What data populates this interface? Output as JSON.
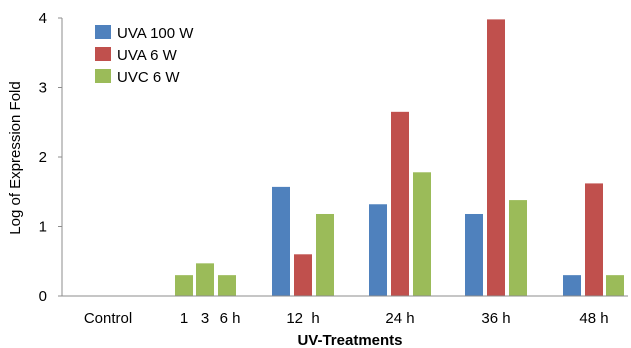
{
  "chart_data": {
    "type": "bar",
    "xlabel": "UV-Treatments",
    "ylabel": "Log of Expression Fold",
    "ylim": [
      0,
      4
    ],
    "yticks": [
      "0",
      "1",
      "2",
      "3",
      "4"
    ],
    "grid": false,
    "legend_position": "top-left",
    "x_tick_labels": [
      "Control",
      "1",
      "3",
      "6 h",
      "12  h",
      "24 h",
      "36 h",
      "48 h"
    ],
    "groups": [
      {
        "label": "Control",
        "bars": []
      },
      {
        "label": "1",
        "bars": [
          {
            "series": "UVC 6 W",
            "value": 0.3
          }
        ]
      },
      {
        "label": "3",
        "bars": [
          {
            "series": "UVC 6 W",
            "value": 0.47
          }
        ]
      },
      {
        "label": "6 h",
        "bars": [
          {
            "series": "UVC 6 W",
            "value": 0.3
          }
        ]
      },
      {
        "label": "12  h",
        "bars": [
          {
            "series": "UVA 100 W",
            "value": 1.57
          },
          {
            "series": "UVA 6 W",
            "value": 0.6
          },
          {
            "series": "UVC 6 W",
            "value": 1.18
          }
        ]
      },
      {
        "label": "24 h",
        "bars": [
          {
            "series": "UVA 100 W",
            "value": 1.32
          },
          {
            "series": "UVA 6 W",
            "value": 2.65
          },
          {
            "series": "UVC 6 W",
            "value": 1.78
          }
        ]
      },
      {
        "label": "36 h",
        "bars": [
          {
            "series": "UVA 100 W",
            "value": 1.18
          },
          {
            "series": "UVA 6 W",
            "value": 3.98
          },
          {
            "series": "UVC 6 W",
            "value": 1.38
          }
        ]
      },
      {
        "label": "48 h",
        "bars": [
          {
            "series": "UVA 100 W",
            "value": 0.3
          },
          {
            "series": "UVA 6 W",
            "value": 1.62
          },
          {
            "series": "UVC 6 W",
            "value": 0.3
          }
        ]
      }
    ],
    "series": [
      {
        "name": "UVA 100 W",
        "color": "#4F81BD"
      },
      {
        "name": "UVA 6 W",
        "color": "#C0504D"
      },
      {
        "name": "UVC 6 W",
        "color": "#9BBB59"
      }
    ]
  }
}
